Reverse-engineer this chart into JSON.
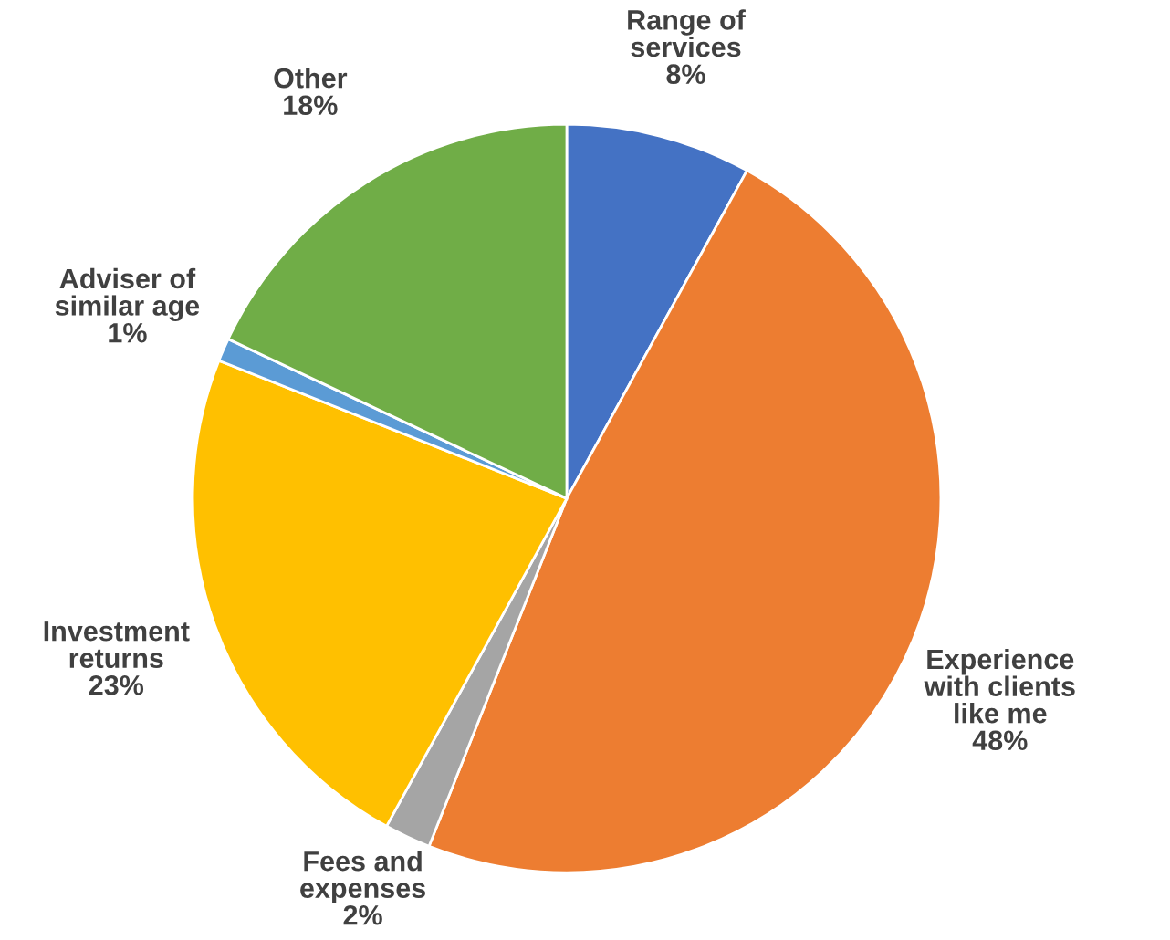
{
  "chart_data": {
    "type": "pie",
    "categories": [
      "Range of\nservices",
      "Experience\nwith clients\nlike me",
      "Fees and\nexpenses",
      "Investment\nreturns",
      "Adviser of\nsimilar age",
      "Other"
    ],
    "values": [
      8,
      48,
      2,
      23,
      1,
      18
    ],
    "colors": [
      "#4472c4",
      "#ed7d31",
      "#a5a5a5",
      "#ffc000",
      "#5b9bd5",
      "#70ad47"
    ],
    "value_labels": [
      "8%",
      "48%",
      "2%",
      "23%",
      "1%",
      "18%"
    ],
    "legend": false
  }
}
